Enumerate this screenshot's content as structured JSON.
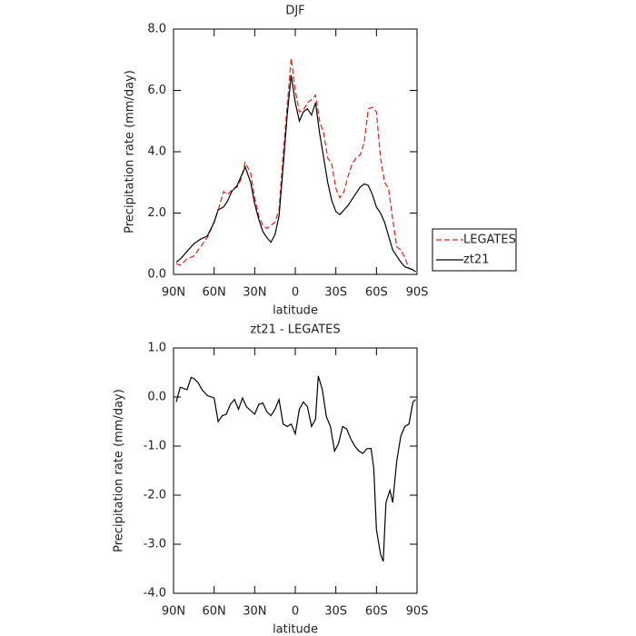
{
  "chart_data": [
    {
      "type": "line",
      "title": "DJF",
      "xlabel": "latitude",
      "ylabel": "Precipitation rate (mm/day)",
      "x": [
        88,
        85,
        80,
        75,
        70,
        65,
        60,
        57,
        53,
        50,
        47,
        43,
        40,
        37,
        33,
        30,
        27,
        24,
        21,
        18,
        15,
        12,
        9,
        6,
        3,
        0,
        -3,
        -6,
        -9,
        -12,
        -15,
        -18,
        -21,
        -24,
        -27,
        -30,
        -33,
        -36,
        -39,
        -42,
        -45,
        -48,
        -51,
        -54,
        -57,
        -60,
        -63,
        -66,
        -69,
        -72,
        -75,
        -78,
        -81,
        -84,
        -87,
        -89
      ],
      "series": [
        {
          "name": "LEGATES",
          "color": "#e8201c",
          "linestyle": "dashed",
          "values": [
            0.35,
            0.3,
            0.5,
            0.6,
            0.9,
            1.2,
            1.7,
            2.1,
            2.7,
            2.6,
            2.75,
            2.85,
            3.1,
            3.65,
            3.3,
            2.5,
            1.9,
            1.6,
            1.5,
            1.6,
            1.7,
            2.1,
            3.9,
            5.5,
            7.05,
            6.0,
            5.3,
            5.35,
            5.6,
            5.7,
            5.85,
            5.0,
            4.6,
            3.8,
            3.6,
            2.8,
            2.5,
            2.7,
            3.2,
            3.6,
            3.8,
            3.9,
            4.3,
            5.4,
            5.45,
            5.3,
            3.8,
            3.0,
            2.8,
            1.8,
            0.9,
            0.8,
            0.55,
            0.2,
            0.15,
            0.1
          ]
        },
        {
          "name": "zt21",
          "color": "#000000",
          "linestyle": "solid",
          "values": [
            0.4,
            0.5,
            0.75,
            1.0,
            1.15,
            1.25,
            1.7,
            2.1,
            2.2,
            2.4,
            2.7,
            2.9,
            3.2,
            3.5,
            3.0,
            2.3,
            1.8,
            1.4,
            1.2,
            1.05,
            1.3,
            1.9,
            3.5,
            5.2,
            6.5,
            5.6,
            5.0,
            5.3,
            5.4,
            5.2,
            5.6,
            4.6,
            3.8,
            3.0,
            2.4,
            2.05,
            1.95,
            2.1,
            2.25,
            2.45,
            2.65,
            2.85,
            2.95,
            2.9,
            2.6,
            2.2,
            2.0,
            1.7,
            1.25,
            0.8,
            0.6,
            0.4,
            0.25,
            0.2,
            0.15,
            0.08
          ]
        }
      ],
      "xlim": [
        90,
        -90
      ],
      "xticks": [
        {
          "value": 90,
          "label": "90N"
        },
        {
          "value": 60,
          "label": "60N"
        },
        {
          "value": 30,
          "label": "30N"
        },
        0,
        {
          "value": -30,
          "label": "30S"
        },
        {
          "value": -60,
          "label": "60S"
        },
        {
          "value": -90,
          "label": "90S"
        }
      ],
      "ylim": [
        0,
        8
      ],
      "yticks": [
        {
          "value": 0,
          "label": "0.0"
        },
        {
          "value": 2,
          "label": "2.0"
        },
        {
          "value": 4,
          "label": "4.0"
        },
        {
          "value": 6,
          "label": "6.0"
        },
        {
          "value": 8,
          "label": "8.0"
        }
      ],
      "legend": "right"
    },
    {
      "type": "line",
      "title": "zt21 - LEGATES",
      "xlabel": "latitude",
      "ylabel": "Precipitation rate (mm/day)",
      "x": [
        88,
        85,
        80,
        77,
        75,
        72,
        69,
        65,
        60,
        57,
        54,
        51,
        48,
        45,
        42,
        39,
        36,
        30,
        27,
        24,
        21,
        18,
        15,
        12,
        9,
        6,
        3,
        0,
        -3,
        -6,
        -9,
        -12,
        -15,
        -17,
        -20,
        -23,
        -26,
        -29,
        -32,
        -35,
        -38,
        -41,
        -44,
        -47,
        -50,
        -53,
        -56,
        -58,
        -60,
        -63,
        -65,
        -67,
        -70,
        -72,
        -75,
        -78,
        -81,
        -84,
        -87,
        -89
      ],
      "series": [
        {
          "color": "#000000",
          "linestyle": "solid",
          "values": [
            -0.1,
            0.2,
            0.15,
            0.4,
            0.38,
            0.3,
            0.15,
            0.03,
            -0.02,
            -0.5,
            -0.38,
            -0.35,
            -0.15,
            -0.05,
            -0.25,
            -0.02,
            -0.2,
            -0.35,
            -0.15,
            -0.12,
            -0.3,
            -0.38,
            -0.25,
            -0.05,
            -0.55,
            -0.6,
            -0.55,
            -0.75,
            -0.25,
            -0.1,
            -0.2,
            -0.6,
            -0.45,
            0.43,
            0.15,
            -0.4,
            -0.6,
            -1.1,
            -0.95,
            -0.6,
            -0.65,
            -0.85,
            -1.0,
            -1.1,
            -1.15,
            -1.05,
            -1.05,
            -1.45,
            -2.7,
            -3.2,
            -3.35,
            -2.15,
            -1.9,
            -2.15,
            -1.3,
            -0.8,
            -0.6,
            -0.55,
            -0.1,
            -0.05
          ]
        }
      ],
      "xlim": [
        90,
        -90
      ],
      "xticks": [
        {
          "value": 90,
          "label": "90N"
        },
        {
          "value": 60,
          "label": "60N"
        },
        {
          "value": 30,
          "label": "30N"
        },
        0,
        {
          "value": -30,
          "label": "30S"
        },
        {
          "value": -60,
          "label": "60S"
        },
        {
          "value": -90,
          "label": "90S"
        }
      ],
      "ylim": [
        -4,
        1
      ],
      "yticks": [
        {
          "value": -4,
          "label": "-4.0"
        },
        {
          "value": -3,
          "label": "-3.0"
        },
        {
          "value": -2,
          "label": "-2.0"
        },
        {
          "value": -1,
          "label": "-1.0"
        },
        {
          "value": 0,
          "label": "0.0"
        },
        {
          "value": 1,
          "label": "1.0"
        }
      ]
    }
  ]
}
